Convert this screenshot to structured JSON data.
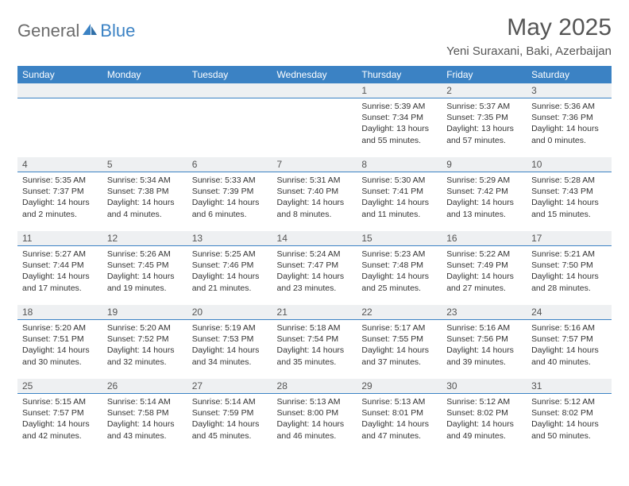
{
  "logo": {
    "text1": "General",
    "text2": "Blue"
  },
  "title": "May 2025",
  "location": "Yeni Suraxani, Baki, Azerbaijan",
  "colors": {
    "header_bg": "#3b82c4",
    "header_text": "#ffffff",
    "daynum_bg": "#eef0f2",
    "daynum_border": "#3b82c4",
    "body_text": "#333333",
    "title_text": "#555555"
  },
  "weekdays": [
    "Sunday",
    "Monday",
    "Tuesday",
    "Wednesday",
    "Thursday",
    "Friday",
    "Saturday"
  ],
  "weeks": [
    [
      {
        "n": "",
        "sr": "",
        "ss": "",
        "dl": ""
      },
      {
        "n": "",
        "sr": "",
        "ss": "",
        "dl": ""
      },
      {
        "n": "",
        "sr": "",
        "ss": "",
        "dl": ""
      },
      {
        "n": "",
        "sr": "",
        "ss": "",
        "dl": ""
      },
      {
        "n": "1",
        "sr": "Sunrise: 5:39 AM",
        "ss": "Sunset: 7:34 PM",
        "dl": "Daylight: 13 hours and 55 minutes."
      },
      {
        "n": "2",
        "sr": "Sunrise: 5:37 AM",
        "ss": "Sunset: 7:35 PM",
        "dl": "Daylight: 13 hours and 57 minutes."
      },
      {
        "n": "3",
        "sr": "Sunrise: 5:36 AM",
        "ss": "Sunset: 7:36 PM",
        "dl": "Daylight: 14 hours and 0 minutes."
      }
    ],
    [
      {
        "n": "4",
        "sr": "Sunrise: 5:35 AM",
        "ss": "Sunset: 7:37 PM",
        "dl": "Daylight: 14 hours and 2 minutes."
      },
      {
        "n": "5",
        "sr": "Sunrise: 5:34 AM",
        "ss": "Sunset: 7:38 PM",
        "dl": "Daylight: 14 hours and 4 minutes."
      },
      {
        "n": "6",
        "sr": "Sunrise: 5:33 AM",
        "ss": "Sunset: 7:39 PM",
        "dl": "Daylight: 14 hours and 6 minutes."
      },
      {
        "n": "7",
        "sr": "Sunrise: 5:31 AM",
        "ss": "Sunset: 7:40 PM",
        "dl": "Daylight: 14 hours and 8 minutes."
      },
      {
        "n": "8",
        "sr": "Sunrise: 5:30 AM",
        "ss": "Sunset: 7:41 PM",
        "dl": "Daylight: 14 hours and 11 minutes."
      },
      {
        "n": "9",
        "sr": "Sunrise: 5:29 AM",
        "ss": "Sunset: 7:42 PM",
        "dl": "Daylight: 14 hours and 13 minutes."
      },
      {
        "n": "10",
        "sr": "Sunrise: 5:28 AM",
        "ss": "Sunset: 7:43 PM",
        "dl": "Daylight: 14 hours and 15 minutes."
      }
    ],
    [
      {
        "n": "11",
        "sr": "Sunrise: 5:27 AM",
        "ss": "Sunset: 7:44 PM",
        "dl": "Daylight: 14 hours and 17 minutes."
      },
      {
        "n": "12",
        "sr": "Sunrise: 5:26 AM",
        "ss": "Sunset: 7:45 PM",
        "dl": "Daylight: 14 hours and 19 minutes."
      },
      {
        "n": "13",
        "sr": "Sunrise: 5:25 AM",
        "ss": "Sunset: 7:46 PM",
        "dl": "Daylight: 14 hours and 21 minutes."
      },
      {
        "n": "14",
        "sr": "Sunrise: 5:24 AM",
        "ss": "Sunset: 7:47 PM",
        "dl": "Daylight: 14 hours and 23 minutes."
      },
      {
        "n": "15",
        "sr": "Sunrise: 5:23 AM",
        "ss": "Sunset: 7:48 PM",
        "dl": "Daylight: 14 hours and 25 minutes."
      },
      {
        "n": "16",
        "sr": "Sunrise: 5:22 AM",
        "ss": "Sunset: 7:49 PM",
        "dl": "Daylight: 14 hours and 27 minutes."
      },
      {
        "n": "17",
        "sr": "Sunrise: 5:21 AM",
        "ss": "Sunset: 7:50 PM",
        "dl": "Daylight: 14 hours and 28 minutes."
      }
    ],
    [
      {
        "n": "18",
        "sr": "Sunrise: 5:20 AM",
        "ss": "Sunset: 7:51 PM",
        "dl": "Daylight: 14 hours and 30 minutes."
      },
      {
        "n": "19",
        "sr": "Sunrise: 5:20 AM",
        "ss": "Sunset: 7:52 PM",
        "dl": "Daylight: 14 hours and 32 minutes."
      },
      {
        "n": "20",
        "sr": "Sunrise: 5:19 AM",
        "ss": "Sunset: 7:53 PM",
        "dl": "Daylight: 14 hours and 34 minutes."
      },
      {
        "n": "21",
        "sr": "Sunrise: 5:18 AM",
        "ss": "Sunset: 7:54 PM",
        "dl": "Daylight: 14 hours and 35 minutes."
      },
      {
        "n": "22",
        "sr": "Sunrise: 5:17 AM",
        "ss": "Sunset: 7:55 PM",
        "dl": "Daylight: 14 hours and 37 minutes."
      },
      {
        "n": "23",
        "sr": "Sunrise: 5:16 AM",
        "ss": "Sunset: 7:56 PM",
        "dl": "Daylight: 14 hours and 39 minutes."
      },
      {
        "n": "24",
        "sr": "Sunrise: 5:16 AM",
        "ss": "Sunset: 7:57 PM",
        "dl": "Daylight: 14 hours and 40 minutes."
      }
    ],
    [
      {
        "n": "25",
        "sr": "Sunrise: 5:15 AM",
        "ss": "Sunset: 7:57 PM",
        "dl": "Daylight: 14 hours and 42 minutes."
      },
      {
        "n": "26",
        "sr": "Sunrise: 5:14 AM",
        "ss": "Sunset: 7:58 PM",
        "dl": "Daylight: 14 hours and 43 minutes."
      },
      {
        "n": "27",
        "sr": "Sunrise: 5:14 AM",
        "ss": "Sunset: 7:59 PM",
        "dl": "Daylight: 14 hours and 45 minutes."
      },
      {
        "n": "28",
        "sr": "Sunrise: 5:13 AM",
        "ss": "Sunset: 8:00 PM",
        "dl": "Daylight: 14 hours and 46 minutes."
      },
      {
        "n": "29",
        "sr": "Sunrise: 5:13 AM",
        "ss": "Sunset: 8:01 PM",
        "dl": "Daylight: 14 hours and 47 minutes."
      },
      {
        "n": "30",
        "sr": "Sunrise: 5:12 AM",
        "ss": "Sunset: 8:02 PM",
        "dl": "Daylight: 14 hours and 49 minutes."
      },
      {
        "n": "31",
        "sr": "Sunrise: 5:12 AM",
        "ss": "Sunset: 8:02 PM",
        "dl": "Daylight: 14 hours and 50 minutes."
      }
    ]
  ]
}
